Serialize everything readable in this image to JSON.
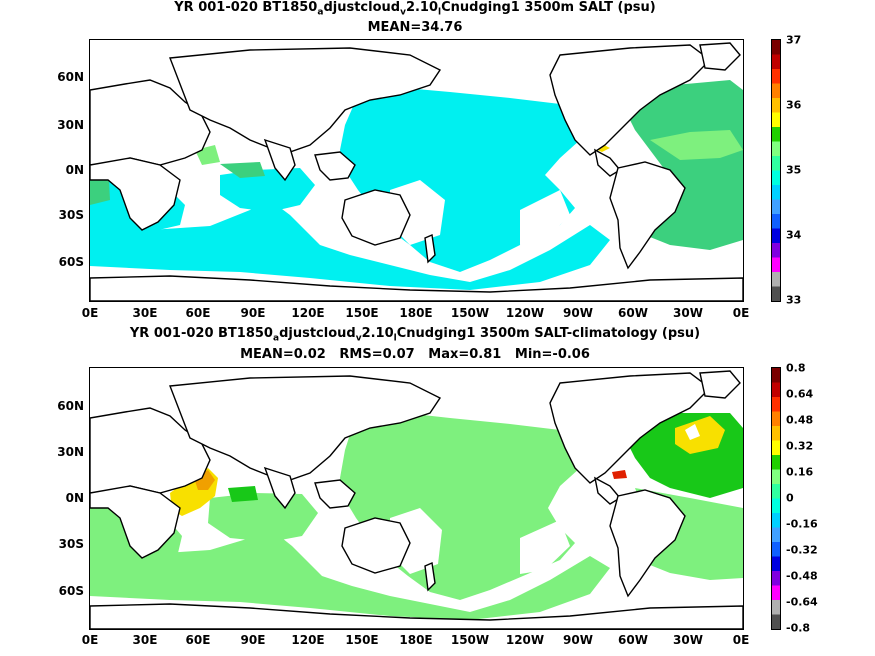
{
  "top": {
    "title_parts": [
      "YR 001-020 BT1850",
      "a",
      "djustcloud",
      "v",
      "2.10",
      "l",
      "Cnudging1 3500m SALT (psu)"
    ],
    "subtitle": "MEAN=34.76",
    "colorbar_labels": [
      "37",
      "36",
      "35",
      "34",
      "33"
    ]
  },
  "bottom": {
    "title_parts": [
      "YR 001-020 BT1850",
      "a",
      "djustcloud",
      "v",
      "2.10",
      "l",
      "Cnudging1 3500m SALT-climatology (psu)"
    ],
    "subtitle": "MEAN=0.02   RMS=0.07   Max=0.81   Min=-0.06",
    "colorbar_labels": [
      "0.8",
      "0.64",
      "0.48",
      "0.32",
      "0.16",
      "0",
      "-0.16",
      "-0.32",
      "-0.48",
      "-0.64",
      "-0.8"
    ]
  },
  "axes": {
    "lat_labels": [
      "60N",
      "30N",
      "0N",
      "30S",
      "60S"
    ],
    "lon_labels": [
      "0E",
      "30E",
      "60E",
      "90E",
      "120E",
      "150E",
      "180E",
      "150W",
      "120W",
      "90W",
      "60W",
      "30W",
      "0E"
    ]
  },
  "colors": {
    "cyan": "#00f0f0",
    "light_green": "#7ef07e",
    "mid_green": "#3cd07e",
    "bright_green": "#18c818",
    "yellow": "#f8e000",
    "orange": "#f0a000",
    "red": "#e02000",
    "coast": "#000000",
    "land": "#ffffff"
  },
  "colorbar_colors": [
    "#7a0000",
    "#c00000",
    "#ff3000",
    "#ff8000",
    "#ffc000",
    "#ffff00",
    "#20d000",
    "#80ff80",
    "#30ffa0",
    "#00ffe0",
    "#00d0ff",
    "#40a0ff",
    "#1060ff",
    "#0000e0",
    "#8000e0",
    "#ff00ff",
    "#b0b0b0",
    "#505050"
  ]
}
